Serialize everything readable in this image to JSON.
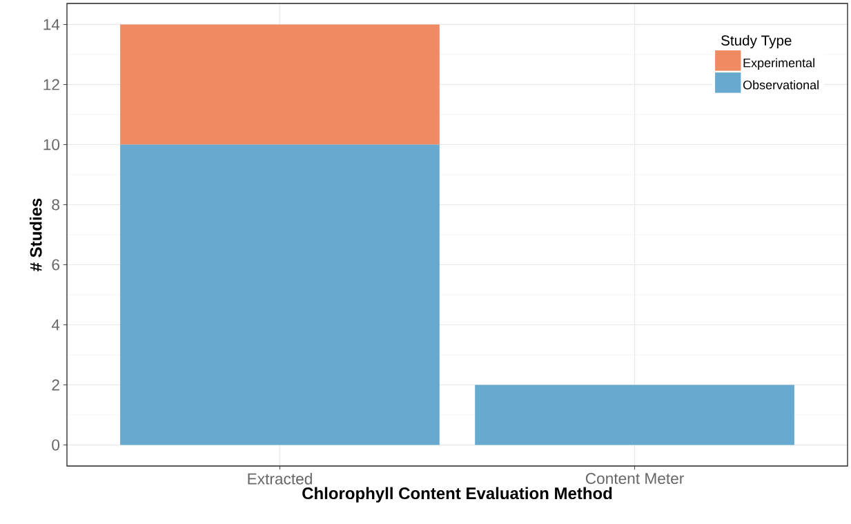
{
  "chart_data": {
    "type": "bar",
    "stacked": true,
    "xlabel": "Chlorophyll Content Evaluation Method",
    "ylabel": "# Studies",
    "legend_title": "Study Type",
    "categories": [
      "Extracted",
      "Content Meter"
    ],
    "series": [
      {
        "name": "Observational",
        "color": "#67a9cf",
        "values": [
          10,
          2
        ]
      },
      {
        "name": "Experimental",
        "color": "#ef8a62",
        "values": [
          4,
          0
        ]
      }
    ],
    "ylim": [
      -0.7,
      14.7
    ],
    "yticks": [
      0,
      2,
      4,
      6,
      8,
      10,
      12,
      14
    ],
    "grid": true,
    "legend": "top right"
  }
}
